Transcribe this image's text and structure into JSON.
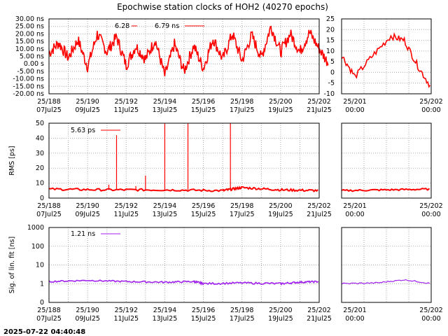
{
  "page": {
    "title": "Epochwise station clocks of HOH2 (40270 epochs)",
    "footer_timestamp": "2025-07-22 04:40:48"
  },
  "chart_data": [
    {
      "id": "clock",
      "type": "line",
      "ylabel": "",
      "y_tick_labels": [
        "30.00 ns",
        "25.00 ns",
        "20.00 ns",
        "15.00 ns",
        "10.00 ns",
        "5.00 ns",
        "0.00  s",
        "-5.00 ns",
        "-10.00 ns",
        "-15.00 ns",
        "-20.00 ns"
      ],
      "y_tick_values": [
        30,
        25,
        20,
        15,
        10,
        5,
        0,
        -5,
        -10,
        -15,
        -20
      ],
      "ylim": [
        -20,
        30
      ],
      "right_y_tick_labels": [
        "25",
        "20",
        "15",
        "10",
        "5",
        "0",
        "-5",
        "-10"
      ],
      "right_y_tick_values": [
        25,
        20,
        15,
        10,
        5,
        0,
        -5,
        -10
      ],
      "right_ylim": [
        -10,
        25
      ],
      "legend": [
        {
          "label": "6.28",
          "color": "#ff0000"
        },
        {
          "label": "6.79 ns",
          "color": "#ff0000"
        }
      ],
      "color": "#ff0000",
      "series_main": [
        [
          0,
          7
        ],
        [
          0.5,
          14
        ],
        [
          1.0,
          4
        ],
        [
          1.5,
          16
        ],
        [
          2.0,
          -2
        ],
        [
          2.5,
          20
        ],
        [
          3.0,
          8
        ],
        [
          3.5,
          18
        ],
        [
          4.0,
          -1
        ],
        [
          4.5,
          12
        ],
        [
          5.0,
          3
        ],
        [
          5.5,
          16
        ],
        [
          6.0,
          -8
        ],
        [
          6.5,
          13
        ],
        [
          7.0,
          -5
        ],
        [
          7.5,
          12
        ],
        [
          8.0,
          -3
        ],
        [
          8.5,
          17
        ],
        [
          9.0,
          3
        ],
        [
          9.5,
          20
        ],
        [
          10.0,
          2
        ],
        [
          10.5,
          19
        ],
        [
          11.0,
          4
        ],
        [
          11.5,
          25
        ],
        [
          12.0,
          8
        ],
        [
          12.5,
          20
        ],
        [
          13.0,
          8
        ],
        [
          13.5,
          21
        ],
        [
          14.0,
          10
        ],
        [
          14.5,
          0
        ]
      ],
      "series_side": [
        [
          0,
          8
        ],
        [
          0.15,
          -2
        ],
        [
          0.35,
          8
        ],
        [
          0.55,
          17
        ],
        [
          0.7,
          15
        ],
        [
          0.85,
          3
        ],
        [
          1.0,
          -7
        ]
      ]
    },
    {
      "id": "rms",
      "type": "line",
      "ylabel": "RMS [ps]",
      "y_tick_labels": [
        "50",
        "40",
        "30",
        "20",
        "10",
        "0"
      ],
      "y_tick_values": [
        50,
        40,
        30,
        20,
        10,
        0
      ],
      "ylim": [
        0,
        50
      ],
      "legend": [
        {
          "label": "5.63 ps",
          "color": "#ff0000"
        }
      ],
      "color": "#ff0000",
      "baseline_main": [
        [
          0,
          6
        ],
        [
          3.0,
          5.5
        ],
        [
          6.0,
          5.5
        ],
        [
          9.0,
          5
        ],
        [
          10.0,
          7
        ],
        [
          12.0,
          5.5
        ],
        [
          14.0,
          5
        ]
      ],
      "spikes_main": [
        [
          3.5,
          42
        ],
        [
          5.0,
          15
        ],
        [
          6.0,
          50
        ],
        [
          7.2,
          50
        ],
        [
          9.4,
          50
        ],
        [
          3.1,
          9
        ],
        [
          4.5,
          8
        ]
      ],
      "baseline_side": [
        [
          0,
          5
        ],
        [
          0.5,
          5.5
        ],
        [
          1.0,
          6
        ]
      ]
    },
    {
      "id": "sig",
      "type": "line",
      "ylabel": "Sig. of lin. fit [ns]",
      "y_tick_labels": [
        "1000",
        "100",
        "10",
        "1",
        "0"
      ],
      "y_tick_values": [
        1000,
        100,
        10,
        1,
        0
      ],
      "ylim": [
        0.1,
        1000
      ],
      "log_scale": true,
      "legend": [
        {
          "label": "1.21 ns",
          "color": "#a020f0"
        }
      ],
      "color": "#a020f0",
      "series_main": [
        [
          0,
          1.3
        ],
        [
          2,
          1.5
        ],
        [
          4,
          1.3
        ],
        [
          6,
          1.2
        ],
        [
          7.5,
          1.3
        ],
        [
          8,
          1.0
        ],
        [
          10,
          1.1
        ],
        [
          12,
          1.0
        ],
        [
          13,
          1.2
        ],
        [
          14,
          1.3
        ]
      ],
      "series_side": [
        [
          0,
          1.0
        ],
        [
          0.4,
          1.1
        ],
        [
          0.7,
          1.6
        ],
        [
          1.0,
          1.0
        ]
      ]
    }
  ],
  "x_main": {
    "labels_top": [
      "25/188",
      "25/190",
      "25/192",
      "25/194",
      "25/196",
      "25/198",
      "25/200",
      "25/202"
    ],
    "labels_bottom": [
      "07Jul25",
      "09Jul25",
      "11Jul25",
      "13Jul25",
      "15Jul25",
      "17Jul25",
      "19Jul25",
      "21Jul25"
    ]
  },
  "x_side": {
    "labels_top": [
      "25/201",
      "25/202"
    ],
    "labels_bottom": [
      "00:00",
      "00:00"
    ]
  }
}
